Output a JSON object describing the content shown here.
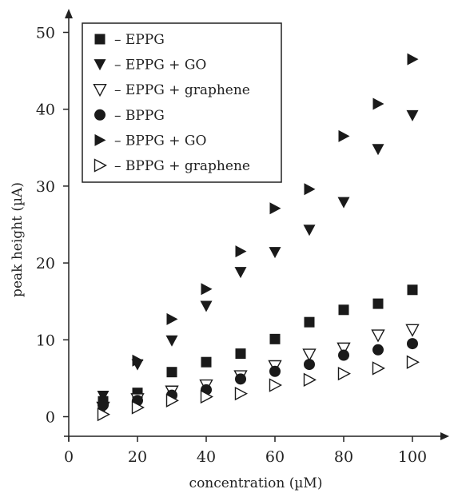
{
  "chart_data": {
    "type": "scatter",
    "title": "",
    "xlabel": "concentration (µM)",
    "ylabel": "peak height (µA)",
    "xlim": [
      0,
      110
    ],
    "ylim": [
      -2.5,
      52
    ],
    "x_ticks": [
      0,
      20,
      40,
      60,
      80,
      100
    ],
    "y_ticks": [
      0,
      10,
      20,
      30,
      40,
      50
    ],
    "grid": false,
    "legend_position": "top-left",
    "series": [
      {
        "name": "– EPPG",
        "marker": "square-filled",
        "x": [
          10,
          20,
          30,
          40,
          50,
          60,
          70,
          80,
          90,
          100
        ],
        "y": [
          2.0,
          3.1,
          5.8,
          7.1,
          8.2,
          10.1,
          12.3,
          13.9,
          14.7,
          16.5
        ]
      },
      {
        "name": "– EPPG + GO",
        "marker": "triangle-down-filled",
        "x": [
          10,
          20,
          30,
          40,
          50,
          60,
          70,
          80,
          90,
          100
        ],
        "y": [
          2.7,
          6.8,
          9.9,
          14.4,
          18.8,
          21.4,
          24.3,
          27.9,
          34.8,
          39.2
        ]
      },
      {
        "name": "– EPPG + graphene",
        "marker": "triangle-down-open",
        "x": [
          10,
          20,
          30,
          40,
          50,
          60,
          70,
          80,
          90,
          100
        ],
        "y": [
          1.2,
          2.3,
          3.3,
          4.1,
          5.3,
          6.6,
          8.1,
          8.9,
          10.6,
          11.3
        ]
      },
      {
        "name": "– BPPG",
        "marker": "circle-filled",
        "x": [
          10,
          20,
          30,
          40,
          50,
          60,
          70,
          80,
          90,
          100
        ],
        "y": [
          1.5,
          2.1,
          2.8,
          3.5,
          4.9,
          5.9,
          6.8,
          8.0,
          8.7,
          9.5
        ]
      },
      {
        "name": "– BPPG + GO",
        "marker": "triangle-right-filled",
        "x": [
          10,
          20,
          30,
          40,
          50,
          60,
          70,
          80,
          90,
          100
        ],
        "y": [
          1.6,
          7.3,
          12.7,
          16.6,
          21.5,
          27.1,
          29.6,
          36.5,
          40.7,
          46.5
        ]
      },
      {
        "name": "– BPPG + graphene",
        "marker": "triangle-right-open",
        "x": [
          10,
          20,
          30,
          40,
          50,
          60,
          70,
          80,
          90,
          100
        ],
        "y": [
          0.3,
          1.2,
          2.1,
          2.6,
          3.0,
          4.1,
          4.8,
          5.6,
          6.3,
          7.1
        ]
      }
    ]
  }
}
